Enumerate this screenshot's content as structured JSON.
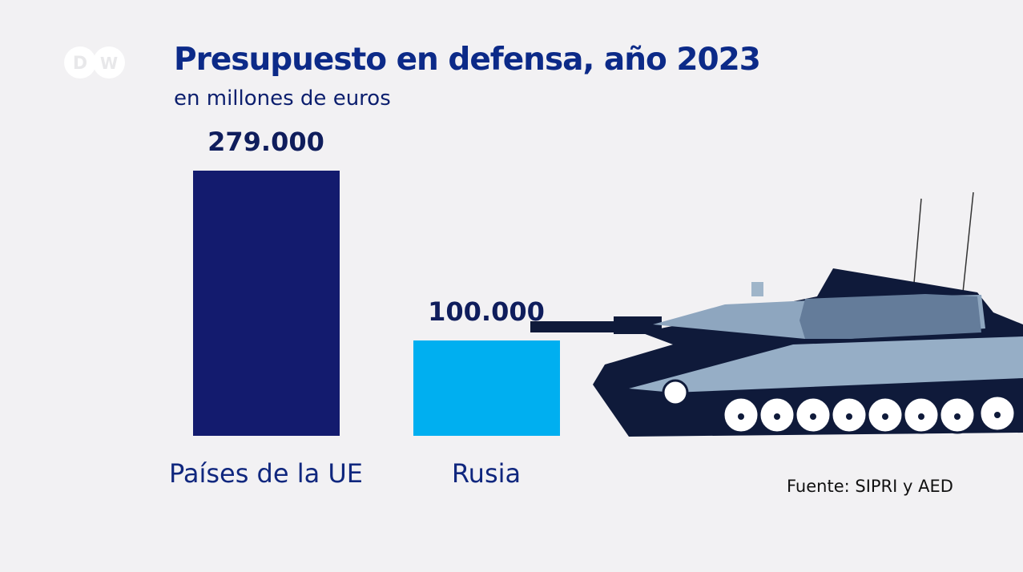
{
  "logo": "DW",
  "chart_data": {
    "type": "bar",
    "title": "Presupuesto en defensa, año 2023",
    "subtitle": "en millones de euros",
    "categories": [
      "Países de la UE",
      "Rusia"
    ],
    "values": [
      279000,
      100000
    ],
    "value_labels": [
      "279.000",
      "100.000"
    ],
    "colors": [
      "#131b6e",
      "#00aff0"
    ],
    "ylim": [
      0,
      279000
    ],
    "grid": false
  },
  "source": "Fuente: SIPRI y AED"
}
